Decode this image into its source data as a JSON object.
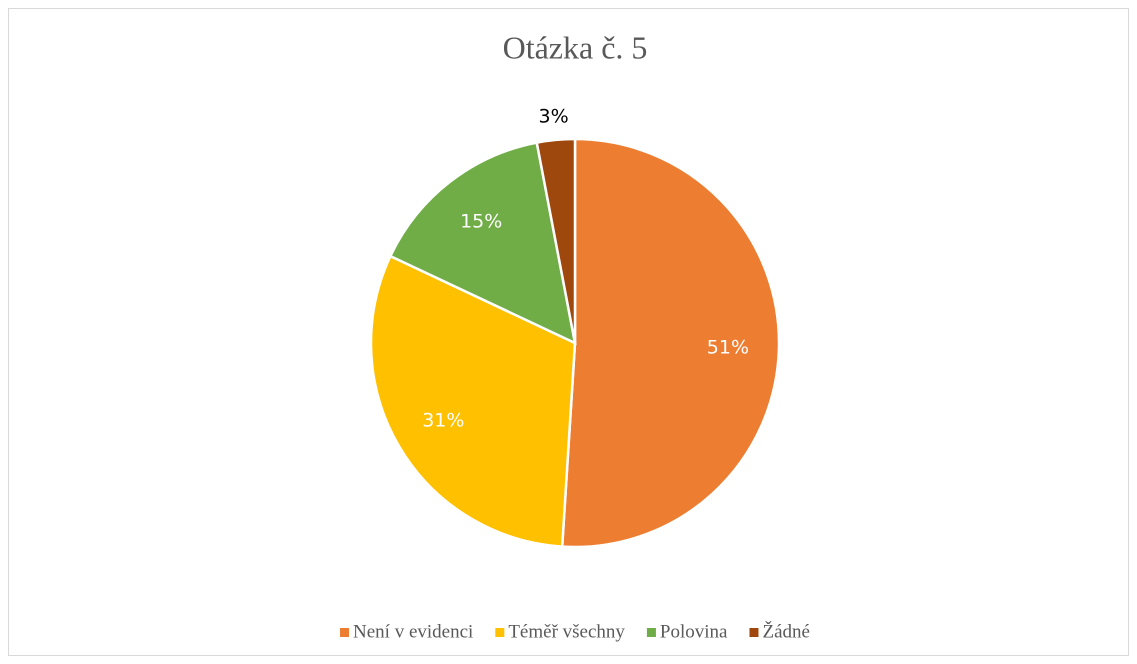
{
  "chart_data": {
    "type": "pie",
    "title": "Otázka č. 5",
    "categories": [
      "Není v evidenci",
      "Téměř všechny",
      "Polovina",
      "Žádné"
    ],
    "values": [
      51,
      31,
      15,
      3
    ],
    "value_labels": [
      "51%",
      "31%",
      "15%",
      "3%"
    ],
    "colors": [
      "#ed7d31",
      "#ffc000",
      "#70ad47",
      "#9e480e"
    ],
    "legend": "bottom"
  }
}
